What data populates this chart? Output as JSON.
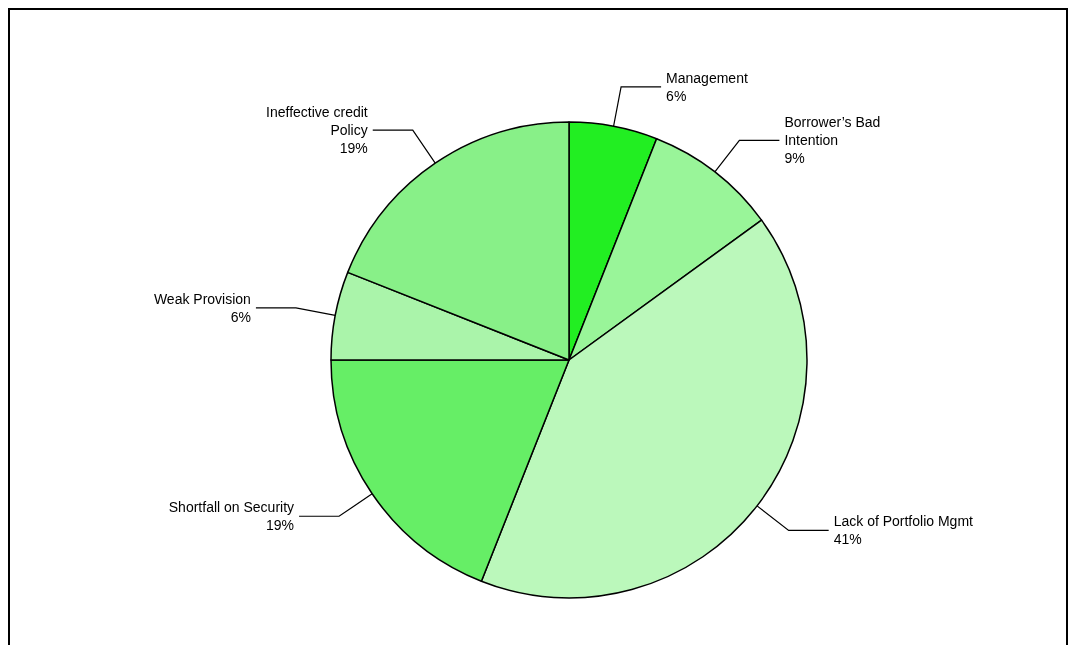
{
  "chart_data": {
    "type": "pie",
    "categories": [
      "Management",
      "Borrower’s Bad Intention",
      "Lack of Portfolio Mgmt",
      "Shortfall on Security",
      "Weak Provision",
      "Ineffective credit Policy"
    ],
    "values": [
      6,
      9,
      41,
      19,
      6,
      19
    ],
    "colors": [
      "#22ee22",
      "#99f599",
      "#bbf8bb",
      "#66ee66",
      "#aaf4aa",
      "#88f088"
    ],
    "value_labels": [
      "6%",
      "9%",
      "41%",
      "19%",
      "6%",
      "19%"
    ],
    "legend": false
  }
}
